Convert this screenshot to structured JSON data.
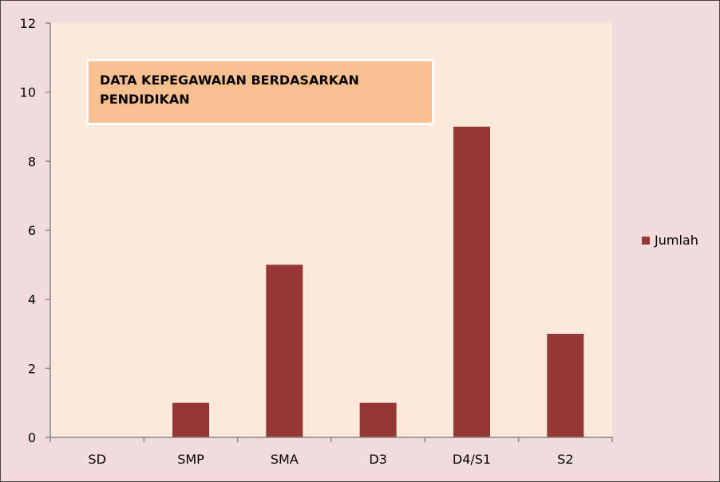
{
  "chart_data": {
    "type": "bar",
    "title": "DATA KEPEGAWAIAN BERDASARKAN PENDIDIKAN",
    "categories": [
      "SD",
      "SMP",
      "SMA",
      "D3",
      "D4/S1",
      "S2"
    ],
    "series": [
      {
        "name": "Jumlah",
        "values": [
          0,
          1,
          5,
          1,
          9,
          3
        ]
      }
    ],
    "ylim": [
      0,
      12
    ],
    "yticks": [
      "0",
      "2",
      "4",
      "6",
      "8",
      "10",
      "12"
    ],
    "legend_position": "right",
    "grid": false
  },
  "colors": {
    "plot_background": "#fde9d9",
    "chart_background": "#f2dcdb",
    "bar": "#953735",
    "title_box": "#fac090"
  }
}
